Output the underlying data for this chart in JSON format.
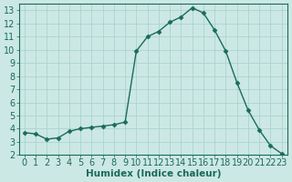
{
  "x": [
    0,
    1,
    2,
    3,
    4,
    5,
    6,
    7,
    8,
    9,
    10,
    11,
    12,
    13,
    14,
    15,
    16,
    17,
    18,
    19,
    20,
    21,
    22,
    23
  ],
  "y": [
    3.7,
    3.6,
    3.2,
    3.3,
    3.8,
    4.0,
    4.1,
    4.2,
    4.3,
    4.5,
    9.9,
    11.0,
    11.4,
    12.1,
    12.5,
    13.2,
    12.8,
    11.5,
    9.9,
    7.5,
    5.4,
    3.9,
    2.7,
    2.1
  ],
  "line_color": "#1a6b5a",
  "marker": "D",
  "marker_size": 2.5,
  "bg_color": "#cce8e4",
  "grid_color": "#aad4ce",
  "xlabel": "Humidex (Indice chaleur)",
  "ylim": [
    2,
    13.5
  ],
  "xlim": [
    -0.5,
    23.5
  ],
  "yticks": [
    2,
    3,
    4,
    5,
    6,
    7,
    8,
    9,
    10,
    11,
    12,
    13
  ],
  "xticks": [
    0,
    1,
    2,
    3,
    4,
    5,
    6,
    7,
    8,
    9,
    10,
    11,
    12,
    13,
    14,
    15,
    16,
    17,
    18,
    19,
    20,
    21,
    22,
    23
  ],
  "tick_color": "#1a6b5a",
  "label_fontsize": 7,
  "xlabel_fontsize": 7.5
}
